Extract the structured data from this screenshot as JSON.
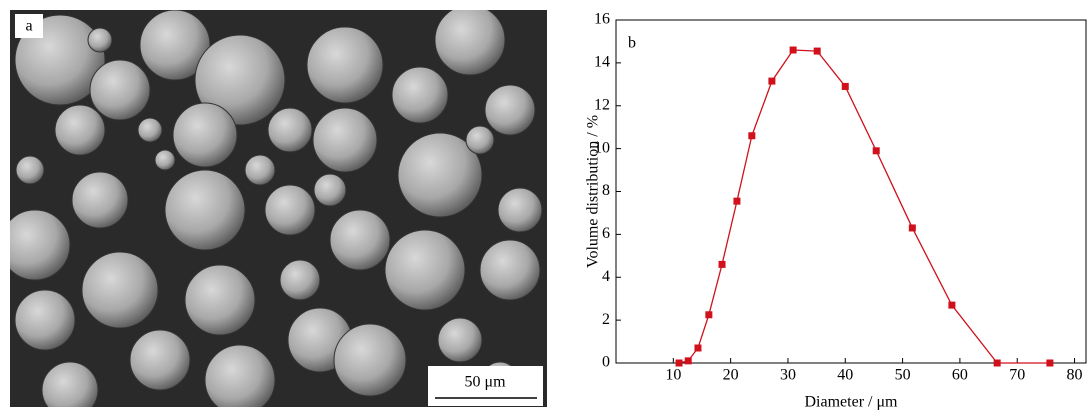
{
  "panel_a": {
    "label": "a",
    "scale_bar": "50 μm"
  },
  "chart_data": {
    "type": "line",
    "panel_label": "b",
    "x_label": "Diameter / μm",
    "y_label": "Volume distribution / %",
    "x": [
      11.0,
      12.6,
      14.3,
      16.2,
      18.5,
      21.1,
      23.7,
      27.2,
      30.9,
      35.1,
      40.0,
      45.4,
      51.7,
      58.6,
      66.5,
      75.7
    ],
    "series": [
      {
        "color": "#d0101b",
        "values": [
          0.0,
          0.1,
          0.7,
          2.25,
          4.6,
          7.55,
          10.6,
          13.15,
          14.6,
          14.55,
          12.9,
          9.9,
          6.3,
          2.7,
          0.0,
          0.0
        ]
      }
    ],
    "xlim": [
      0,
      82
    ],
    "ylim": [
      0,
      16
    ],
    "xticks": [
      10,
      20,
      30,
      40,
      50,
      60,
      70,
      80
    ],
    "yticks": [
      0,
      2,
      4,
      6,
      8,
      10,
      12,
      14,
      16
    ],
    "grid": false
  }
}
